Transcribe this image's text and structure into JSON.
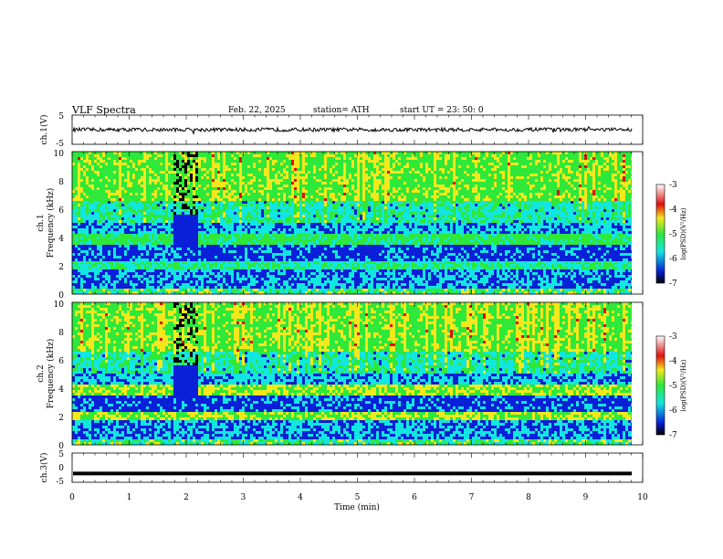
{
  "header": {
    "title": "VLF  Spectra",
    "date": "Feb. 22, 2025",
    "station": "station= ATH",
    "start": "start  UT  =    23: 50: 0"
  },
  "colors": {
    "spectrum_lowest": "#000000",
    "spectrum_low": "#0a1fd8",
    "spectrum_mid": "#12e6e0",
    "spectrum_midhigh": "#2ee83a",
    "spectrum_high": "#f4e81c",
    "spectrum_highest": "#e01010",
    "colorbar_top": "#ffffff"
  },
  "chart_data": [
    {
      "type": "line",
      "name": "ch1-waveform",
      "ylabel": "ch.1(V)",
      "ylim": [
        -5,
        5
      ],
      "yticks": [
        "5",
        "-5"
      ],
      "xlim": [
        0,
        10
      ],
      "baseline": 0,
      "noise_amplitude": 0.8
    },
    {
      "type": "heatmap",
      "name": "ch1-spectrogram",
      "ylabel": "ch.1",
      "ylabel2": "Frequency (kHz)",
      "ylim": [
        0,
        10
      ],
      "yticks": [
        "10",
        "8",
        "6",
        "4",
        "2",
        "0"
      ],
      "xlim": [
        0,
        10
      ],
      "colorbar": {
        "label": "log(PSD)(V²/Hz)",
        "ticks": [
          "-3",
          "-4",
          "-5",
          "-6",
          "-7"
        ],
        "range": [
          -7,
          -3
        ]
      }
    },
    {
      "type": "heatmap",
      "name": "ch2-spectrogram",
      "ylabel": "ch.2",
      "ylabel2": "Frequency (kHz)",
      "ylim": [
        0,
        10
      ],
      "yticks": [
        "10",
        "8",
        "6",
        "4",
        "2",
        "0"
      ],
      "xlim": [
        0,
        10
      ],
      "colorbar": {
        "label": "log(PSD)(V²/Hz)",
        "ticks": [
          "-3",
          "-4",
          "-5",
          "-6",
          "-7"
        ],
        "range": [
          -7,
          -3
        ]
      }
    },
    {
      "type": "line",
      "name": "ch3-waveform",
      "ylabel": "ch.3(V)",
      "ylim": [
        -5,
        5
      ],
      "yticks": [
        "5",
        "0",
        "-5"
      ],
      "xlim": [
        0,
        10
      ],
      "baseline": -2
    }
  ],
  "xaxis": {
    "label": "Time  (min)",
    "ticks": [
      "0",
      "1",
      "2",
      "3",
      "4",
      "5",
      "6",
      "7",
      "8",
      "9",
      "10"
    ]
  }
}
